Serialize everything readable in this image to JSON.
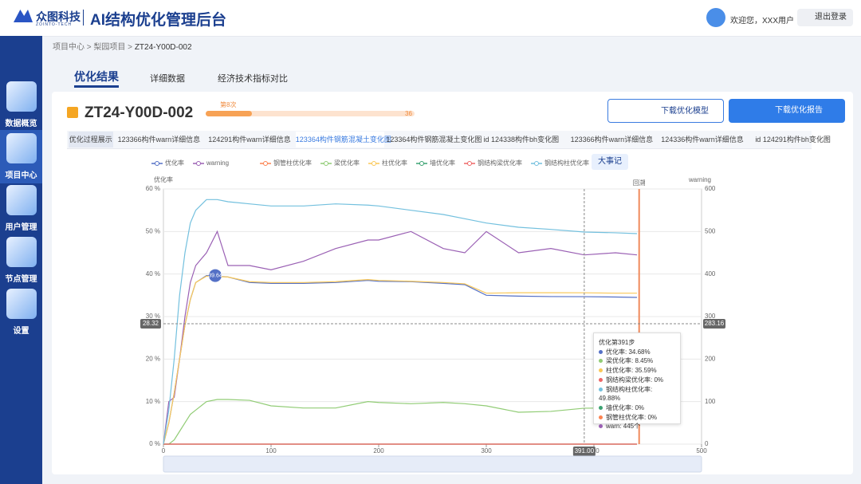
{
  "header": {
    "logo": "众图科技",
    "logo_sub": "ZOINTO-TECH",
    "title": "AI结构优化管理后台",
    "greeting": "欢迎您，XXX用户",
    "logout": "退出登录"
  },
  "sidebar": [
    "数据概览",
    "项目中心",
    "用户管理",
    "节点管理",
    "设置"
  ],
  "breadcrumb": [
    "项目中心",
    "梨园项目",
    "ZT24-Y00D-002"
  ],
  "tabs": [
    "优化结果",
    "详细数据",
    "经济技术指标对比"
  ],
  "project": {
    "name": "ZT24-Y00D-002",
    "progress": {
      "label": "第8次",
      "value": 8,
      "max": 36
    }
  },
  "buttons": [
    "下载优化模型",
    "下载优化报告"
  ],
  "subtabs": [
    "优化过程展示",
    "123366构件warn详细信息",
    "124291构件warn详细信息",
    "123364构件钢筋混凝土变化图",
    "123364构件钢筋混凝土变化图",
    "id 124338构件bh变化图",
    "123366构件warn详细信息",
    "124336构件warn详细信息",
    "id 124291构件bh变化图"
  ],
  "toolbar": "大事记",
  "chart_data": {
    "type": "line",
    "ylabel": "优化率",
    "y2label": "warning",
    "x": [
      0,
      5,
      10,
      15,
      20,
      25,
      30,
      40,
      50,
      60,
      80,
      100,
      130,
      160,
      190,
      200,
      230,
      260,
      280,
      300,
      330,
      360,
      391,
      420,
      440
    ],
    "series": [
      {
        "name": "优化率",
        "color": "#5470c6",
        "values": [
          0,
          5,
          12,
          20,
          28,
          34,
          38,
          39.64,
          39.5,
          39.3,
          38,
          37.8,
          37.8,
          38,
          38.5,
          38.3,
          38.2,
          37.8,
          37.5,
          35,
          34.8,
          34.7,
          34.68,
          34.6,
          34.5
        ]
      },
      {
        "name": "warning",
        "color": "#9a60b4",
        "axis": "y2",
        "values": [
          0,
          100,
          110,
          200,
          300,
          380,
          420,
          450,
          500,
          420,
          420,
          410,
          430,
          460,
          480,
          480,
          500,
          460,
          450,
          500,
          450,
          460,
          445,
          450,
          445
        ]
      },
      {
        "name": "钢管柱优化率",
        "color": "#fc8452",
        "values": [
          0,
          0,
          0,
          0,
          0,
          0,
          0,
          0,
          0,
          0,
          0,
          0,
          0,
          0,
          0,
          0,
          0,
          0,
          0,
          0,
          0,
          0,
          0,
          0,
          0
        ]
      },
      {
        "name": "梁优化率",
        "color": "#91cc75",
        "values": [
          0,
          0,
          1,
          3,
          5,
          7,
          8,
          10,
          10.5,
          10.5,
          10.3,
          9,
          8.5,
          8.5,
          10,
          9.8,
          9.5,
          9.8,
          9.5,
          9,
          7.5,
          7.7,
          8.45,
          8.5,
          8.5
        ]
      },
      {
        "name": "柱优化率",
        "color": "#fac858",
        "values": [
          0,
          5,
          12,
          20,
          28,
          34,
          38,
          39.5,
          39.4,
          39.3,
          38.2,
          38,
          38,
          38.2,
          38.7,
          38.5,
          38.3,
          38,
          37.7,
          35.5,
          35.6,
          35.6,
          35.59,
          35.5,
          35.5
        ]
      },
      {
        "name": "墙优化率",
        "color": "#3ba272",
        "values": [
          0,
          0,
          0,
          0,
          0,
          0,
          0,
          0,
          0,
          0,
          0,
          0,
          0,
          0,
          0,
          0,
          0,
          0,
          0,
          0,
          0,
          0,
          0,
          0,
          0
        ]
      },
      {
        "name": "钢结构梁优化率",
        "color": "#ee6666",
        "values": [
          0,
          0,
          0,
          0,
          0,
          0,
          0,
          0,
          0,
          0,
          0,
          0,
          0,
          0,
          0,
          0,
          0,
          0,
          0,
          0,
          0,
          0,
          0,
          0,
          0
        ]
      },
      {
        "name": "钢结构柱优化率",
        "color": "#73c0de",
        "values": [
          0,
          8,
          20,
          35,
          45,
          52,
          55,
          57.5,
          57.5,
          57,
          56.5,
          56,
          56,
          56.5,
          56.2,
          56,
          55,
          54,
          53,
          52,
          51,
          50.5,
          49.88,
          49.7,
          49.5
        ]
      }
    ],
    "xlim": [
      0,
      500
    ],
    "xticks": [
      0,
      100,
      200,
      300,
      400,
      500
    ],
    "ylim": [
      0,
      60
    ],
    "yticks": [
      {
        "value": 0,
        "label": "0 %"
      },
      {
        "value": 10,
        "label": "10 %"
      },
      {
        "value": 20,
        "label": "20 %"
      },
      {
        "value": 30,
        "label": "30 %"
      },
      {
        "value": 40,
        "label": "40 %"
      },
      {
        "value": 50,
        "label": "50 %"
      },
      {
        "value": 60,
        "label": "60 %"
      }
    ],
    "y2lim": [
      0,
      600
    ],
    "y2ticks": [
      0,
      100,
      200,
      300,
      400,
      500,
      600
    ],
    "crosshair": {
      "x": {
        "value": 391,
        "label": "391.00"
      },
      "y": 28.32,
      "y2": 283.16
    },
    "event_line": {
      "x": 442,
      "label": "回溯"
    },
    "callout": {
      "x": 40,
      "value": 39.64,
      "label": "39.64"
    }
  },
  "tooltip": {
    "title": "优化第391步",
    "rows": [
      "优化率: 34.68%",
      "梁优化率: 8.45%",
      "柱优化率: 35.59%",
      "钢结构梁优化率: 0%",
      "钢结构柱优化率: 49.88%",
      "墙优化率: 0%",
      "钢管柱优化率: 0%",
      "warn: 445个"
    ],
    "colors": [
      "#5470c6",
      "#91cc75",
      "#fac858",
      "#ee6666",
      "#73c0de",
      "#3ba272",
      "#fc8452",
      "#9a60b4"
    ]
  }
}
